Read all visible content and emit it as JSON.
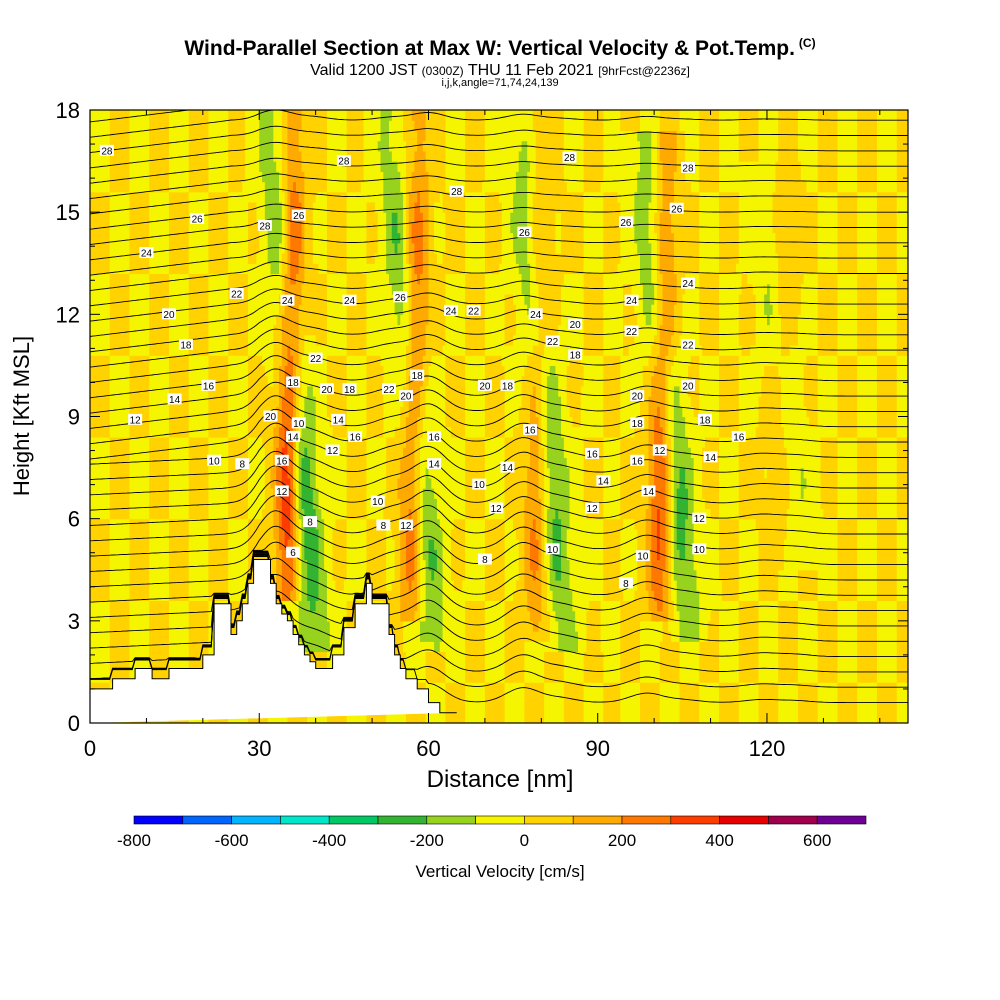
{
  "title": "Wind-Parallel Section at Max W: Vertical Velocity & Pot.Temp.",
  "title_tag": "(C)",
  "subtitle": {
    "valid": "Valid 1200 JST",
    "utc": "(0300Z)",
    "date": "THU 11 Feb 2021",
    "forecast": "[9hrFcst@2236z]"
  },
  "params": "i,j,k,angle=71,74,24,139",
  "chart_data": {
    "type": "heatmap",
    "xlabel": "Distance [nm]",
    "ylabel": "Height [Kft MSL]",
    "xlim": [
      0,
      145
    ],
    "ylim": [
      0,
      18
    ],
    "x_ticks": [
      "0",
      "30",
      "60",
      "90",
      "120"
    ],
    "x_tick_values": [
      0,
      30,
      60,
      90,
      120
    ],
    "y_ticks": [
      "0",
      "3",
      "6",
      "9",
      "12",
      "15",
      "18"
    ],
    "y_tick_values": [
      0,
      3,
      6,
      9,
      12,
      15,
      18
    ],
    "grid": false,
    "colorbar": {
      "label": "Vertical Velocity [cm/s]",
      "ticks": [
        "-800",
        "-600",
        "-400",
        "-200",
        "0",
        "200",
        "400",
        "600"
      ],
      "tick_values": [
        -800,
        -600,
        -400,
        -200,
        0,
        200,
        400,
        600
      ],
      "range": [
        -800,
        700
      ],
      "bins": [
        {
          "from": -800,
          "to": -700,
          "color": "#0000ff"
        },
        {
          "from": -700,
          "to": -600,
          "color": "#0064ff"
        },
        {
          "from": -600,
          "to": -500,
          "color": "#00b4ff"
        },
        {
          "from": -500,
          "to": -400,
          "color": "#00e6c8"
        },
        {
          "from": -400,
          "to": -300,
          "color": "#00c864"
        },
        {
          "from": -300,
          "to": -200,
          "color": "#32b432"
        },
        {
          "from": -200,
          "to": -100,
          "color": "#96d21e"
        },
        {
          "from": -100,
          "to": 0,
          "color": "#f5f500"
        },
        {
          "from": 0,
          "to": 100,
          "color": "#ffd200"
        },
        {
          "from": 100,
          "to": 200,
          "color": "#ffaa00"
        },
        {
          "from": 200,
          "to": 300,
          "color": "#ff7800"
        },
        {
          "from": 300,
          "to": 400,
          "color": "#ff3c00"
        },
        {
          "from": 400,
          "to": 500,
          "color": "#e60000"
        },
        {
          "from": 500,
          "to": 600,
          "color": "#a0004b"
        },
        {
          "from": 600,
          "to": 700,
          "color": "#6e0096"
        }
      ]
    },
    "terrain": {
      "x": [
        0,
        4,
        4,
        8,
        8,
        11,
        11,
        14,
        14,
        20,
        20,
        22,
        22,
        25,
        25,
        26,
        26,
        27,
        27,
        28,
        28,
        29,
        29,
        32,
        32,
        33,
        33,
        34,
        34,
        35,
        35,
        36,
        36,
        37,
        37,
        38,
        38,
        39,
        39,
        40,
        40,
        43,
        43,
        45,
        45,
        47,
        47,
        49,
        49,
        50,
        50,
        53,
        53,
        54,
        54,
        55,
        55,
        56,
        56,
        58,
        58,
        60,
        60,
        62,
        62,
        65,
        65,
        145
      ],
      "y": [
        1.0,
        1.0,
        1.3,
        1.3,
        1.6,
        1.6,
        1.3,
        1.3,
        1.6,
        1.6,
        2.0,
        2.0,
        3.5,
        3.5,
        2.6,
        2.6,
        3.0,
        3.0,
        3.5,
        3.5,
        4.1,
        4.1,
        4.8,
        4.8,
        4.1,
        4.1,
        3.5,
        3.5,
        3.2,
        3.2,
        3.0,
        3.0,
        2.6,
        2.6,
        2.3,
        2.3,
        2.0,
        2.0,
        1.8,
        1.8,
        1.6,
        1.6,
        2.0,
        2.0,
        2.8,
        2.8,
        3.5,
        3.5,
        4.1,
        4.1,
        3.5,
        3.5,
        2.6,
        2.6,
        2.0,
        2.0,
        1.6,
        1.6,
        1.3,
        1.3,
        1.0,
        1.0,
        0.6,
        0.6,
        0.3,
        0.3,
        0.3
      ]
    },
    "updrafts": [
      {
        "x_bottom": 35,
        "y_bottom": 4.2,
        "x_top": 36,
        "y_top": 18,
        "w_max": 550
      },
      {
        "x_bottom": 57,
        "y_bottom": 3.5,
        "x_top": 58,
        "y_top": 18,
        "w_max": 420
      },
      {
        "x_bottom": 79,
        "y_bottom": 3.0,
        "x_top": 80,
        "y_top": 18,
        "w_max": 300
      },
      {
        "x_bottom": 101,
        "y_bottom": 3.5,
        "x_top": 102,
        "y_top": 17,
        "w_max": 450
      },
      {
        "x_bottom": 122,
        "y_bottom": 5.0,
        "x_top": 123,
        "y_top": 16,
        "w_max": 150
      }
    ],
    "downdrafts": [
      {
        "x_bottom": 40,
        "y_bottom": 2.5,
        "x_top": 32,
        "y_top": 18,
        "w_min": -350
      },
      {
        "x_bottom": 61,
        "y_bottom": 2.5,
        "x_top": 53,
        "y_top": 18,
        "w_min": -300
      },
      {
        "x_bottom": 84,
        "y_bottom": 2.5,
        "x_top": 76,
        "y_top": 18,
        "w_min": -280
      },
      {
        "x_bottom": 106,
        "y_bottom": 3.0,
        "x_top": 98,
        "y_top": 17,
        "w_min": -320
      },
      {
        "x_bottom": 126,
        "y_bottom": 5.0,
        "x_top": 119,
        "y_top": 16,
        "w_min": -150
      }
    ],
    "isentrope_labels": [
      {
        "text": "28",
        "x": 3,
        "y": 16.8
      },
      {
        "text": "26",
        "x": 19,
        "y": 14.8
      },
      {
        "text": "24",
        "x": 10,
        "y": 13.8
      },
      {
        "text": "20",
        "x": 14,
        "y": 12.0
      },
      {
        "text": "18",
        "x": 17,
        "y": 11.1
      },
      {
        "text": "16",
        "x": 21,
        "y": 9.9
      },
      {
        "text": "14",
        "x": 15,
        "y": 9.5
      },
      {
        "text": "12",
        "x": 8,
        "y": 8.9
      },
      {
        "text": "10",
        "x": 22,
        "y": 7.7
      },
      {
        "text": "8",
        "x": 27,
        "y": 7.6
      },
      {
        "text": "28",
        "x": 31,
        "y": 14.6
      },
      {
        "text": "22",
        "x": 26,
        "y": 12.6
      },
      {
        "text": "20",
        "x": 32,
        "y": 9.0
      },
      {
        "text": "26",
        "x": 37,
        "y": 14.9
      },
      {
        "text": "24",
        "x": 35,
        "y": 12.4
      },
      {
        "text": "18",
        "x": 36,
        "y": 10.0
      },
      {
        "text": "14",
        "x": 36,
        "y": 8.4
      },
      {
        "text": "16",
        "x": 34,
        "y": 7.7
      },
      {
        "text": "12",
        "x": 34,
        "y": 6.8
      },
      {
        "text": "10",
        "x": 37,
        "y": 8.8
      },
      {
        "text": "6",
        "x": 36,
        "y": 5.0
      },
      {
        "text": "8",
        "x": 39,
        "y": 5.9
      },
      {
        "text": "28",
        "x": 45,
        "y": 16.5
      },
      {
        "text": "24",
        "x": 46,
        "y": 12.4
      },
      {
        "text": "22",
        "x": 40,
        "y": 10.7
      },
      {
        "text": "20",
        "x": 42,
        "y": 9.8
      },
      {
        "text": "18",
        "x": 46,
        "y": 9.8
      },
      {
        "text": "14",
        "x": 44,
        "y": 8.9
      },
      {
        "text": "16",
        "x": 47,
        "y": 8.4
      },
      {
        "text": "12",
        "x": 43,
        "y": 8.0
      },
      {
        "text": "22",
        "x": 53,
        "y": 9.8
      },
      {
        "text": "10",
        "x": 51,
        "y": 6.5
      },
      {
        "text": "8",
        "x": 52,
        "y": 5.8
      },
      {
        "text": "26",
        "x": 55,
        "y": 12.5
      },
      {
        "text": "20",
        "x": 56,
        "y": 9.6
      },
      {
        "text": "18",
        "x": 58,
        "y": 10.2
      },
      {
        "text": "16",
        "x": 61,
        "y": 8.4
      },
      {
        "text": "14",
        "x": 61,
        "y": 7.6
      },
      {
        "text": "12",
        "x": 56,
        "y": 5.8
      },
      {
        "text": "28",
        "x": 65,
        "y": 15.6
      },
      {
        "text": "24",
        "x": 64,
        "y": 12.1
      },
      {
        "text": "22",
        "x": 68,
        "y": 12.1
      },
      {
        "text": "20",
        "x": 70,
        "y": 9.9
      },
      {
        "text": "18",
        "x": 74,
        "y": 9.9
      },
      {
        "text": "16",
        "x": 78,
        "y": 8.6
      },
      {
        "text": "14",
        "x": 74,
        "y": 7.5
      },
      {
        "text": "10",
        "x": 69,
        "y": 7.0
      },
      {
        "text": "12",
        "x": 72,
        "y": 6.3
      },
      {
        "text": "8",
        "x": 70,
        "y": 4.8
      },
      {
        "text": "26",
        "x": 77,
        "y": 14.4
      },
      {
        "text": "24",
        "x": 79,
        "y": 12.0
      },
      {
        "text": "22",
        "x": 82,
        "y": 11.2
      },
      {
        "text": "20",
        "x": 86,
        "y": 11.7
      },
      {
        "text": "18",
        "x": 86,
        "y": 10.8
      },
      {
        "text": "16",
        "x": 89,
        "y": 7.9
      },
      {
        "text": "14",
        "x": 91,
        "y": 7.1
      },
      {
        "text": "12",
        "x": 89,
        "y": 6.3
      },
      {
        "text": "10",
        "x": 82,
        "y": 5.1
      },
      {
        "text": "28",
        "x": 85,
        "y": 16.6
      },
      {
        "text": "26",
        "x": 95,
        "y": 14.7
      },
      {
        "text": "24",
        "x": 96,
        "y": 12.4
      },
      {
        "text": "22",
        "x": 96,
        "y": 11.5
      },
      {
        "text": "20",
        "x": 97,
        "y": 9.6
      },
      {
        "text": "18",
        "x": 97,
        "y": 8.8
      },
      {
        "text": "16",
        "x": 97,
        "y": 7.7
      },
      {
        "text": "14",
        "x": 99,
        "y": 6.8
      },
      {
        "text": "12",
        "x": 101,
        "y": 8.0
      },
      {
        "text": "10",
        "x": 98,
        "y": 4.9
      },
      {
        "text": "8",
        "x": 95,
        "y": 4.1
      },
      {
        "text": "28",
        "x": 106,
        "y": 16.3
      },
      {
        "text": "26",
        "x": 104,
        "y": 15.1
      },
      {
        "text": "24",
        "x": 106,
        "y": 12.9
      },
      {
        "text": "22",
        "x": 106,
        "y": 11.1
      },
      {
        "text": "20",
        "x": 106,
        "y": 9.9
      },
      {
        "text": "18",
        "x": 109,
        "y": 8.9
      },
      {
        "text": "16",
        "x": 115,
        "y": 8.4
      },
      {
        "text": "14",
        "x": 110,
        "y": 7.8
      },
      {
        "text": "12",
        "x": 108,
        "y": 6.0
      },
      {
        "text": "10",
        "x": 108,
        "y": 5.1
      }
    ]
  }
}
